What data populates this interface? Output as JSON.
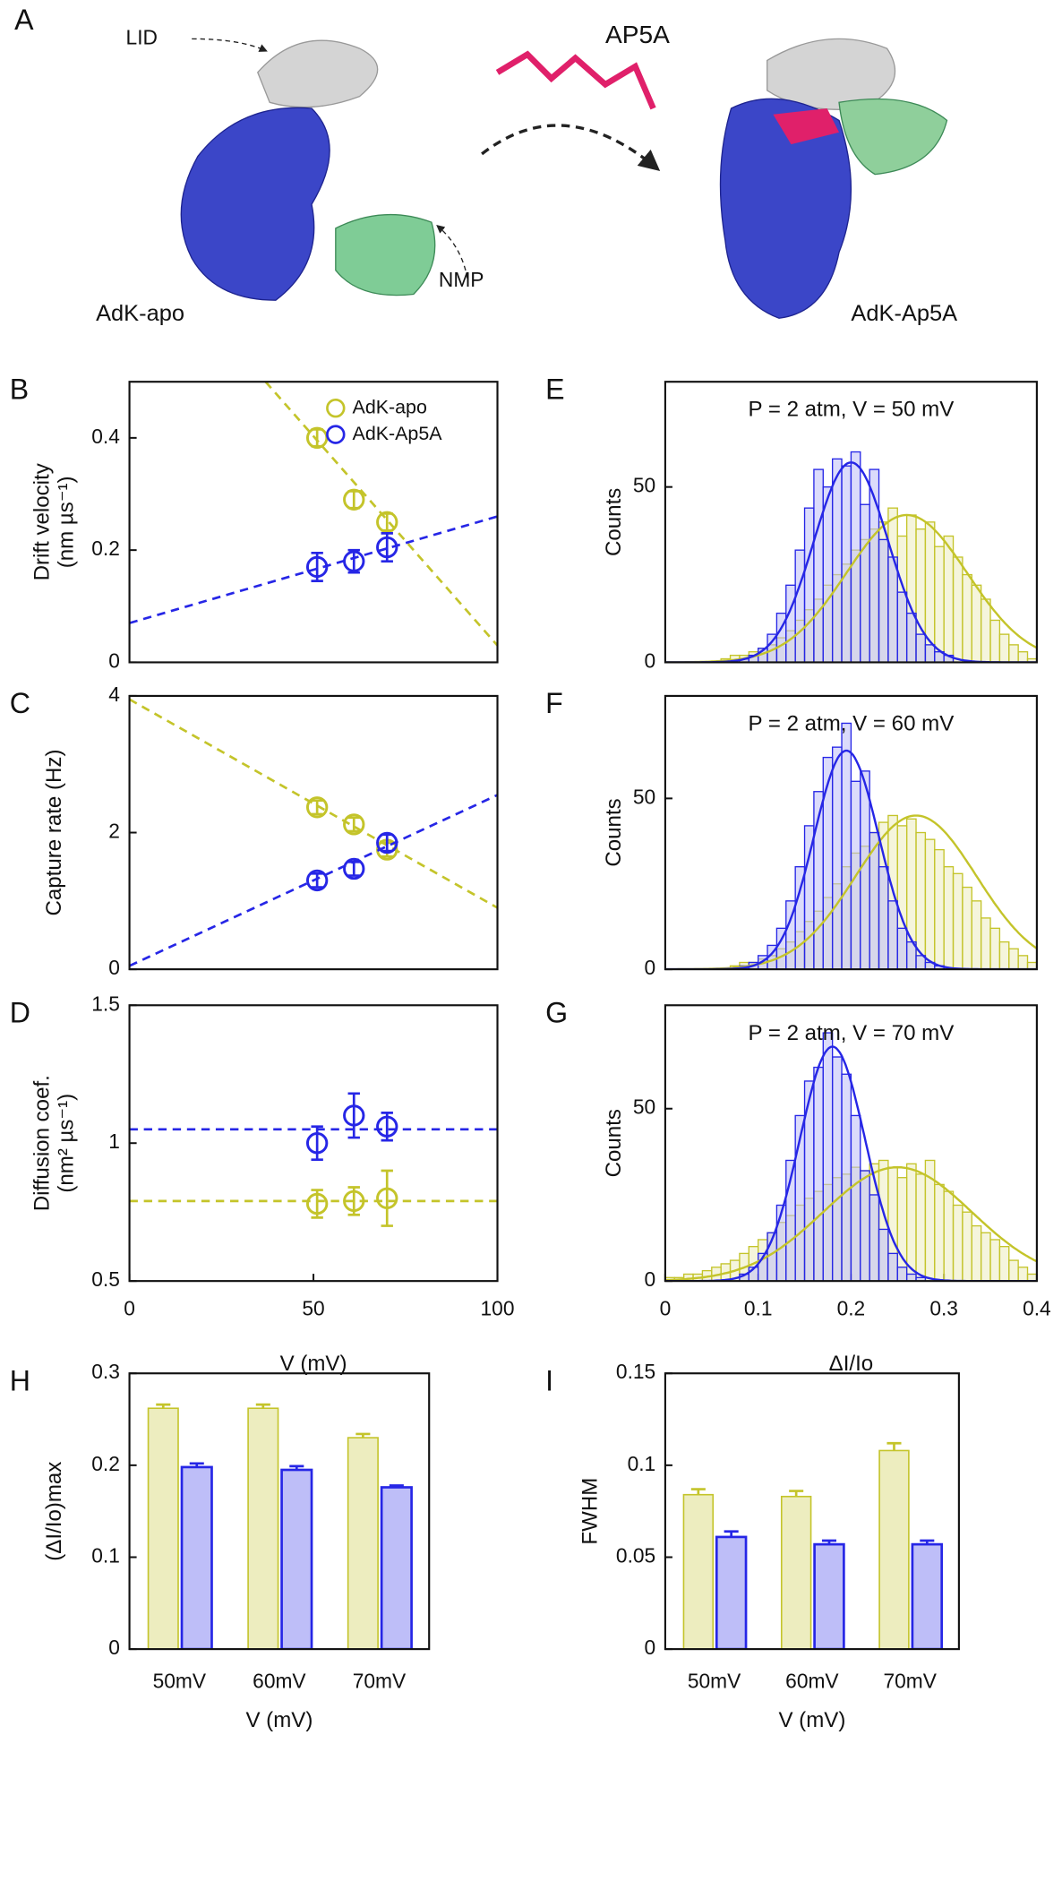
{
  "panel_a": {
    "label": "A",
    "lid": "LID",
    "ligand": "AP5A",
    "nmp": "NMP",
    "left": "AdK-apo",
    "right": "AdK-Ap5A"
  },
  "chart_data": [
    {
      "type": "scatter",
      "label": "B",
      "ylabel": [
        "Drift velocity",
        "(nm µs⁻¹)"
      ],
      "xlim": [
        0,
        100
      ],
      "ylim": [
        0,
        0.5
      ],
      "yticks": [
        0,
        0.2,
        0.4
      ],
      "legend": "upper right",
      "series": [
        {
          "name": "AdK-apo",
          "color": "#c4c42a",
          "x": [
            51,
            61,
            70
          ],
          "values": [
            0.4,
            0.29,
            0.25
          ],
          "errors": [
            0.015,
            0.015,
            0.015
          ],
          "fit": {
            "x": [
              37,
              100
            ],
            "y": [
              0.5,
              0.03
            ]
          }
        },
        {
          "name": "AdK-Ap5A",
          "color": "#2626e6",
          "x": [
            51,
            61,
            70
          ],
          "values": [
            0.17,
            0.18,
            0.205
          ],
          "errors": [
            0.025,
            0.02,
            0.025
          ],
          "fit": {
            "x": [
              0,
              100
            ],
            "y": [
              0.07,
              0.26
            ]
          }
        }
      ]
    },
    {
      "type": "scatter",
      "label": "C",
      "ylabel": [
        "Capture rate (Hz)"
      ],
      "xlim": [
        0,
        100
      ],
      "ylim": [
        0,
        4
      ],
      "yticks": [
        0,
        2,
        4
      ],
      "series": [
        {
          "color": "#c4c42a",
          "x": [
            51,
            61,
            70
          ],
          "values": [
            2.37,
            2.12,
            1.75
          ],
          "errors": [
            0.1,
            0.1,
            0.1
          ],
          "fit": {
            "x": [
              0,
              100
            ],
            "y": [
              3.95,
              0.9
            ]
          }
        },
        {
          "color": "#2626e6",
          "x": [
            51,
            61,
            70
          ],
          "values": [
            1.3,
            1.47,
            1.85
          ],
          "errors": [
            0.1,
            0.1,
            0.12
          ],
          "fit": {
            "x": [
              0,
              100
            ],
            "y": [
              0.05,
              2.55
            ]
          }
        }
      ]
    },
    {
      "type": "scatter",
      "label": "D",
      "ylabel": [
        "Diffusion coef.",
        "(nm² µs⁻¹)"
      ],
      "xlabel": "V (mV)",
      "xlim": [
        0,
        100
      ],
      "ylim": [
        0.5,
        1.5
      ],
      "xticks": [
        0,
        50,
        100
      ],
      "yticks": [
        0.5,
        1,
        1.5
      ],
      "series": [
        {
          "color": "#c4c42a",
          "x": [
            51,
            61,
            70
          ],
          "values": [
            0.78,
            0.79,
            0.8
          ],
          "errors": [
            0.05,
            0.05,
            0.1
          ],
          "fit": {
            "x": [
              0,
              100
            ],
            "y": [
              0.79,
              0.79
            ]
          }
        },
        {
          "color": "#2626e6",
          "x": [
            51,
            61,
            70
          ],
          "values": [
            1.0,
            1.1,
            1.06
          ],
          "errors": [
            0.06,
            0.08,
            0.05
          ],
          "fit": {
            "x": [
              0,
              100
            ],
            "y": [
              1.05,
              1.05
            ]
          }
        }
      ]
    },
    {
      "type": "histogram",
      "label": "E",
      "ylabel": [
        "Counts"
      ],
      "annotation": "P = 2 atm, V = 50 mV",
      "xlim": [
        0,
        0.4
      ],
      "ylim": [
        0,
        80
      ],
      "yticks": [
        0,
        50
      ],
      "bins": [
        0,
        0.01,
        0.02,
        0.03,
        0.04,
        0.05,
        0.06,
        0.07,
        0.08,
        0.09,
        0.1,
        0.11,
        0.12,
        0.13,
        0.14,
        0.15,
        0.16,
        0.17,
        0.18,
        0.19,
        0.2,
        0.21,
        0.22,
        0.23,
        0.24,
        0.25,
        0.26,
        0.27,
        0.28,
        0.29,
        0.3,
        0.31,
        0.32,
        0.33,
        0.34,
        0.35,
        0.36,
        0.37,
        0.38,
        0.39,
        0.4
      ],
      "series": [
        {
          "color": "#c4c42a",
          "values": [
            0,
            0,
            0,
            0,
            0,
            0,
            1,
            2,
            2,
            3,
            4,
            5,
            7,
            9,
            12,
            15,
            18,
            22,
            25,
            28,
            32,
            35,
            38,
            40,
            44,
            36,
            42,
            38,
            40,
            33,
            36,
            30,
            25,
            22,
            18,
            12,
            8,
            5,
            3,
            1
          ],
          "fit": {
            "center": 0.26,
            "sigma": 0.065,
            "peak": 42
          }
        },
        {
          "color": "#2626e6",
          "values": [
            0,
            0,
            0,
            0,
            0,
            0,
            0,
            0,
            1,
            2,
            4,
            8,
            14,
            22,
            32,
            44,
            55,
            50,
            58,
            56,
            60,
            45,
            55,
            35,
            30,
            20,
            14,
            8,
            5,
            3,
            2,
            0,
            0,
            0,
            0,
            0,
            0,
            0,
            0,
            0
          ],
          "fit": {
            "center": 0.2,
            "sigma": 0.04,
            "peak": 57
          }
        }
      ]
    },
    {
      "type": "histogram",
      "label": "F",
      "ylabel": [
        "Counts"
      ],
      "annotation": "P = 2 atm, V = 60 mV",
      "xlim": [
        0,
        0.4
      ],
      "ylim": [
        0,
        80
      ],
      "yticks": [
        0,
        50
      ],
      "bins": [
        0,
        0.01,
        0.02,
        0.03,
        0.04,
        0.05,
        0.06,
        0.07,
        0.08,
        0.09,
        0.1,
        0.11,
        0.12,
        0.13,
        0.14,
        0.15,
        0.16,
        0.17,
        0.18,
        0.19,
        0.2,
        0.21,
        0.22,
        0.23,
        0.24,
        0.25,
        0.26,
        0.27,
        0.28,
        0.29,
        0.3,
        0.31,
        0.32,
        0.33,
        0.34,
        0.35,
        0.36,
        0.37,
        0.38,
        0.39,
        0.4
      ],
      "series": [
        {
          "color": "#c4c42a",
          "values": [
            0,
            0,
            0,
            0,
            0,
            0,
            0,
            1,
            2,
            2,
            3,
            4,
            6,
            8,
            11,
            14,
            17,
            21,
            25,
            30,
            34,
            36,
            40,
            43,
            45,
            42,
            44,
            40,
            38,
            35,
            30,
            28,
            24,
            20,
            15,
            12,
            8,
            6,
            4,
            2
          ],
          "fit": {
            "center": 0.27,
            "sigma": 0.065,
            "peak": 45
          }
        },
        {
          "color": "#2626e6",
          "values": [
            0,
            0,
            0,
            0,
            0,
            0,
            0,
            0,
            1,
            2,
            4,
            7,
            12,
            20,
            30,
            42,
            52,
            62,
            65,
            72,
            55,
            58,
            40,
            30,
            20,
            12,
            8,
            4,
            2,
            1,
            0,
            0,
            0,
            0,
            0,
            0,
            0,
            0,
            0,
            0
          ],
          "fit": {
            "center": 0.195,
            "sigma": 0.035,
            "peak": 64
          }
        }
      ]
    },
    {
      "type": "histogram",
      "label": "G",
      "ylabel": [
        "Counts"
      ],
      "xlabel": "ΔI/Io",
      "annotation": "P = 2 atm, V = 70 mV",
      "xlim": [
        0,
        0.4
      ],
      "ylim": [
        0,
        80
      ],
      "xticks": [
        0,
        0.1,
        0.2,
        0.3,
        0.4
      ],
      "yticks": [
        0,
        50
      ],
      "bins": [
        0,
        0.01,
        0.02,
        0.03,
        0.04,
        0.05,
        0.06,
        0.07,
        0.08,
        0.09,
        0.1,
        0.11,
        0.12,
        0.13,
        0.14,
        0.15,
        0.16,
        0.17,
        0.18,
        0.19,
        0.2,
        0.21,
        0.22,
        0.23,
        0.24,
        0.25,
        0.26,
        0.27,
        0.28,
        0.29,
        0.3,
        0.31,
        0.32,
        0.33,
        0.34,
        0.35,
        0.36,
        0.37,
        0.38,
        0.39,
        0.4
      ],
      "series": [
        {
          "color": "#c4c42a",
          "values": [
            1,
            1,
            2,
            2,
            3,
            4,
            5,
            6,
            8,
            10,
            12,
            14,
            17,
            19,
            22,
            24,
            26,
            28,
            30,
            31,
            33,
            32,
            34,
            35,
            33,
            30,
            34,
            31,
            35,
            28,
            26,
            22,
            20,
            16,
            14,
            12,
            10,
            6,
            4,
            2
          ],
          "fit": {
            "center": 0.25,
            "sigma": 0.08,
            "peak": 33
          }
        },
        {
          "color": "#2626e6",
          "values": [
            0,
            0,
            0,
            0,
            0,
            0,
            0,
            0,
            2,
            4,
            8,
            14,
            22,
            35,
            48,
            58,
            62,
            72,
            65,
            60,
            48,
            32,
            25,
            15,
            8,
            4,
            2,
            1,
            0,
            0,
            0,
            0,
            0,
            0,
            0,
            0,
            0,
            0,
            0,
            0
          ],
          "fit": {
            "center": 0.18,
            "sigma": 0.035,
            "peak": 68
          }
        }
      ]
    },
    {
      "type": "bar",
      "label": "H",
      "ylabel": [
        "(ΔI/Io)max"
      ],
      "xlabel": "V (mV)",
      "categories": [
        "50mV",
        "60mV",
        "70mV"
      ],
      "ylim": [
        0,
        0.3
      ],
      "yticks": [
        0,
        0.1,
        0.2,
        0.3
      ],
      "series": [
        {
          "color": "#c4c42a",
          "values": [
            0.262,
            0.262,
            0.23
          ],
          "errors": [
            0.004,
            0.004,
            0.004
          ]
        },
        {
          "color": "#2626e6",
          "values": [
            0.198,
            0.195,
            0.176
          ],
          "errors": [
            0.004,
            0.004,
            0.002
          ]
        }
      ]
    },
    {
      "type": "bar",
      "label": "I",
      "ylabel": [
        "FWHM"
      ],
      "xlabel": "V (mV)",
      "categories": [
        "50mV",
        "60mV",
        "70mV"
      ],
      "ylim": [
        0,
        0.15
      ],
      "yticks": [
        0,
        0.05,
        0.1,
        0.15
      ],
      "series": [
        {
          "color": "#c4c42a",
          "values": [
            0.084,
            0.083,
            0.108
          ],
          "errors": [
            0.003,
            0.003,
            0.004
          ]
        },
        {
          "color": "#2626e6",
          "values": [
            0.061,
            0.057,
            0.057
          ],
          "errors": [
            0.003,
            0.002,
            0.002
          ]
        }
      ]
    }
  ]
}
